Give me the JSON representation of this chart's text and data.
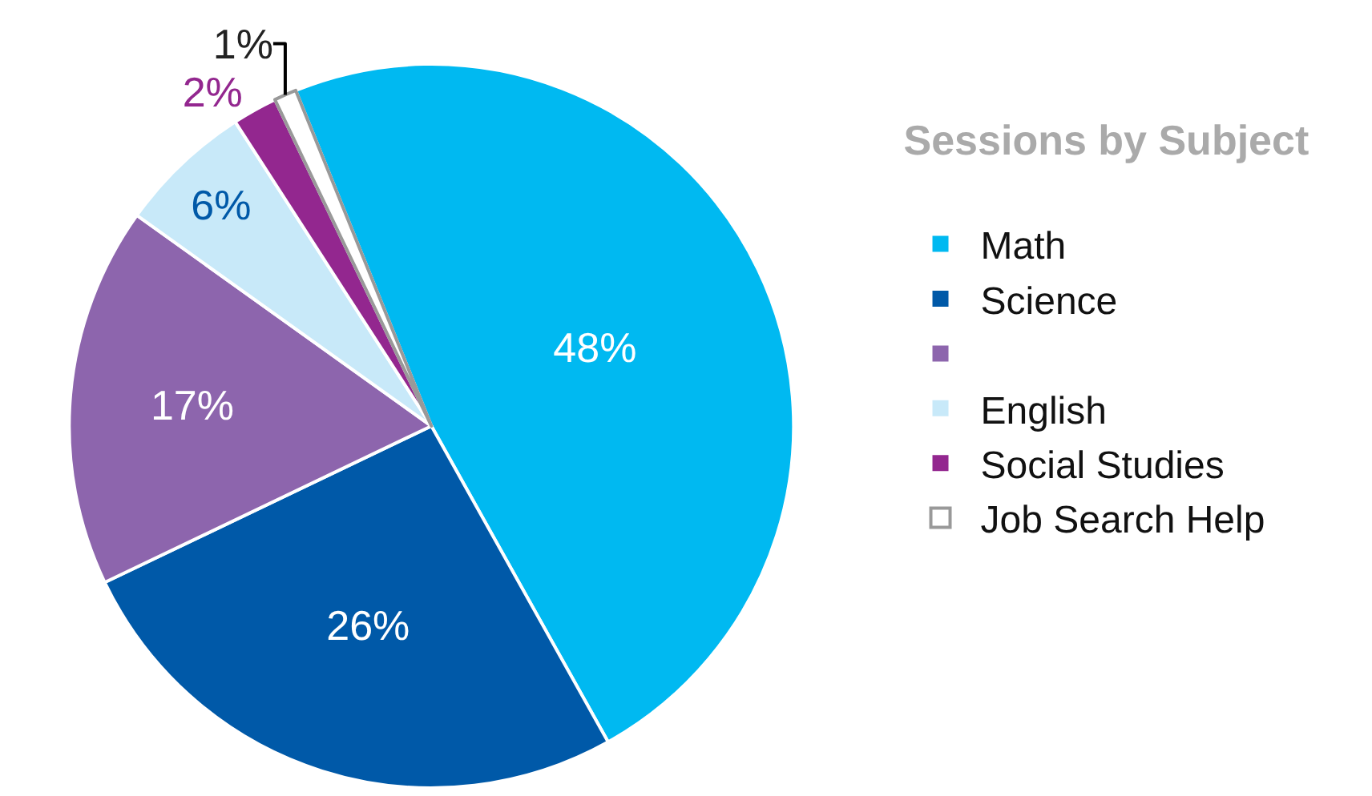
{
  "chart_data": {
    "type": "pie",
    "legend_title": "Sessions by Subject",
    "categories": [
      "Math",
      "Science",
      null,
      "English",
      "Social Studies",
      "Job Search Help"
    ],
    "values": [
      48,
      26,
      17,
      6,
      2,
      1
    ],
    "colors": [
      "#00b9f1",
      "#0059a8",
      "#8d65ad",
      "#c8e9f9",
      "#93278f",
      "#ffffff"
    ],
    "value_labels": [
      "48%",
      "26%",
      "17%",
      "6%",
      "2%",
      "1%"
    ],
    "legend": "right"
  }
}
